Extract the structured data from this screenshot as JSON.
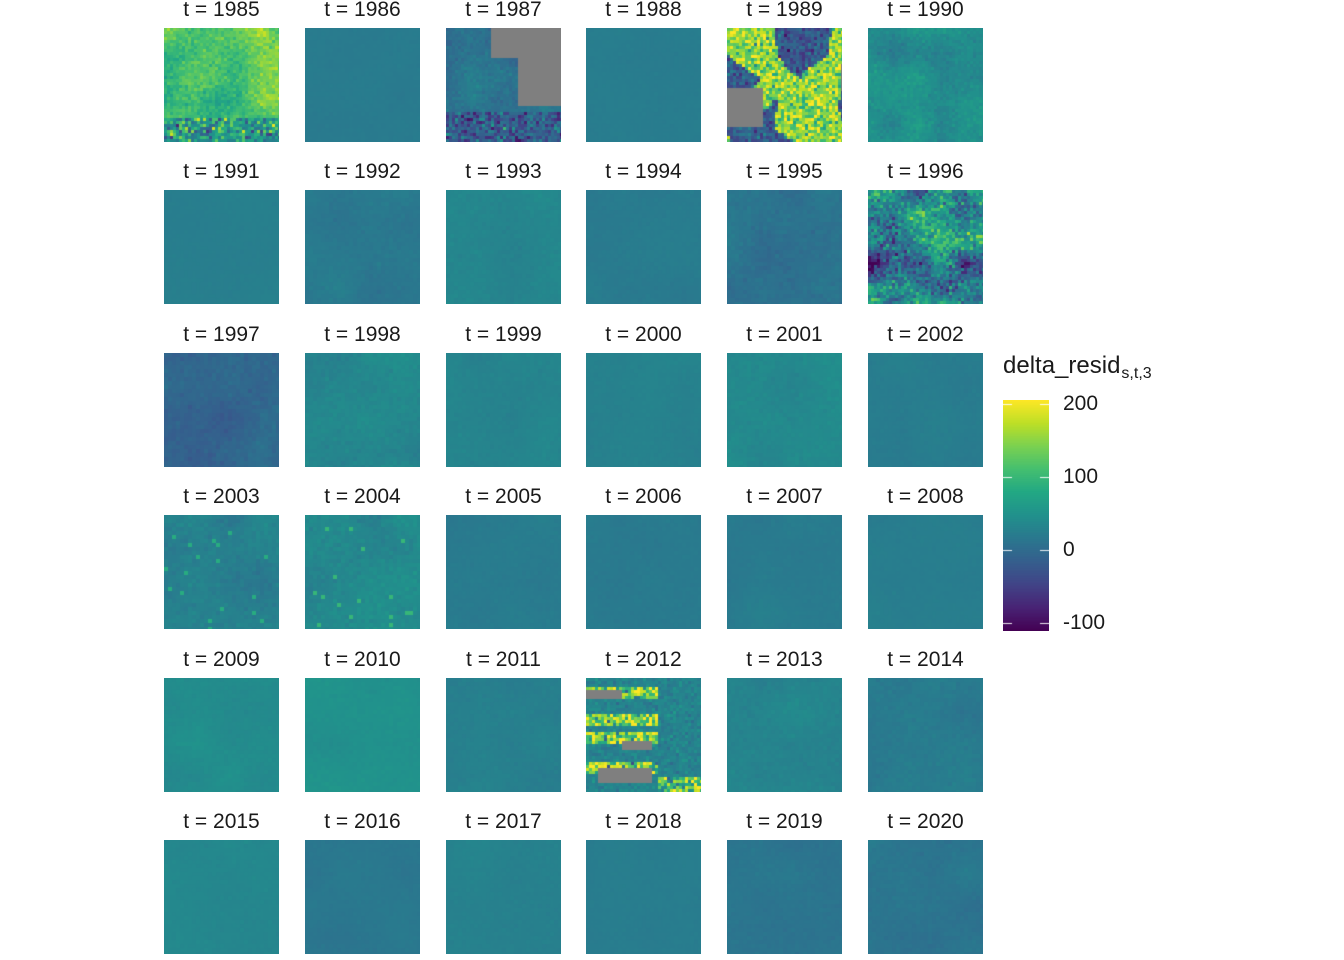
{
  "chart_data": {
    "type": "heatmap",
    "title": "",
    "facet_prefix": "t = ",
    "facets": [
      {
        "year": "1985",
        "mean": 120,
        "sd": 30,
        "pattern": "high"
      },
      {
        "year": "1986",
        "mean": 20,
        "sd": 2,
        "pattern": "smooth"
      },
      {
        "year": "1987",
        "mean": 10,
        "sd": 15,
        "pattern": "missing_block"
      },
      {
        "year": "1988",
        "mean": 22,
        "sd": 2,
        "pattern": "smooth"
      },
      {
        "year": "1989",
        "mean": 120,
        "sd": 70,
        "pattern": "patchy"
      },
      {
        "year": "1990",
        "mean": 45,
        "sd": 15,
        "pattern": "noisy"
      },
      {
        "year": "1991",
        "mean": 25,
        "sd": 2,
        "pattern": "smooth"
      },
      {
        "year": "1992",
        "mean": 15,
        "sd": 5,
        "pattern": "smooth"
      },
      {
        "year": "1993",
        "mean": 35,
        "sd": 5,
        "pattern": "smooth"
      },
      {
        "year": "1994",
        "mean": 20,
        "sd": 3,
        "pattern": "smooth"
      },
      {
        "year": "1995",
        "mean": 10,
        "sd": 8,
        "pattern": "smooth"
      },
      {
        "year": "1996",
        "mean": 20,
        "sd": 80,
        "pattern": "noisy"
      },
      {
        "year": "1997",
        "mean": -5,
        "sd": 10,
        "pattern": "smooth"
      },
      {
        "year": "1998",
        "mean": 35,
        "sd": 8,
        "pattern": "smooth"
      },
      {
        "year": "1999",
        "mean": 30,
        "sd": 4,
        "pattern": "smooth"
      },
      {
        "year": "2000",
        "mean": 28,
        "sd": 3,
        "pattern": "smooth"
      },
      {
        "year": "2001",
        "mean": 38,
        "sd": 6,
        "pattern": "smooth"
      },
      {
        "year": "2002",
        "mean": 22,
        "sd": 3,
        "pattern": "smooth"
      },
      {
        "year": "2003",
        "mean": 25,
        "sd": 10,
        "pattern": "streaks"
      },
      {
        "year": "2004",
        "mean": 38,
        "sd": 10,
        "pattern": "streaks"
      },
      {
        "year": "2005",
        "mean": 20,
        "sd": 3,
        "pattern": "smooth"
      },
      {
        "year": "2006",
        "mean": 18,
        "sd": 3,
        "pattern": "smooth"
      },
      {
        "year": "2007",
        "mean": 20,
        "sd": 3,
        "pattern": "smooth"
      },
      {
        "year": "2008",
        "mean": 22,
        "sd": 2,
        "pattern": "smooth"
      },
      {
        "year": "2009",
        "mean": 40,
        "sd": 4,
        "pattern": "smooth"
      },
      {
        "year": "2010",
        "mean": 48,
        "sd": 4,
        "pattern": "smooth"
      },
      {
        "year": "2011",
        "mean": 25,
        "sd": 4,
        "pattern": "smooth"
      },
      {
        "year": "2012",
        "mean": 55,
        "sd": 40,
        "pattern": "bands"
      },
      {
        "year": "2013",
        "mean": 30,
        "sd": 6,
        "pattern": "smooth"
      },
      {
        "year": "2014",
        "mean": 20,
        "sd": 6,
        "pattern": "smooth"
      },
      {
        "year": "2015",
        "mean": 35,
        "sd": 3,
        "pattern": "smooth"
      },
      {
        "year": "2016",
        "mean": 15,
        "sd": 3,
        "pattern": "smooth"
      },
      {
        "year": "2017",
        "mean": 28,
        "sd": 3,
        "pattern": "smooth"
      },
      {
        "year": "2018",
        "mean": 22,
        "sd": 2,
        "pattern": "smooth"
      },
      {
        "year": "2019",
        "mean": 12,
        "sd": 4,
        "pattern": "smooth"
      },
      {
        "year": "2020",
        "mean": 12,
        "sd": 5,
        "pattern": "smooth"
      }
    ],
    "legend": {
      "title": "delta_resid",
      "title_subscript": "s,t,3",
      "min": -110,
      "max": 205,
      "ticks": [
        {
          "value": 200,
          "label": "200"
        },
        {
          "value": 100,
          "label": "100"
        },
        {
          "value": 0,
          "label": "0"
        },
        {
          "value": -100,
          "label": "-100"
        }
      ],
      "palette": "viridis",
      "na_color": "#7f7f7f"
    },
    "layout": {
      "columns": 6,
      "rows": 6
    }
  }
}
